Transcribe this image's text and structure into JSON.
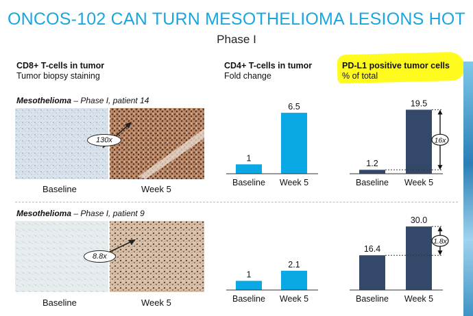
{
  "header": {
    "title": "ONCOS-102 CAN TURN MESOTHELIOMA LESIONS HOT",
    "subtitle": "Phase I"
  },
  "columns": {
    "cd8": {
      "title": "CD8+ T-cells in tumor",
      "subtitle": "Tumor biopsy staining"
    },
    "cd4": {
      "title": "CD4+ T-cells in tumor",
      "subtitle": "Fold change"
    },
    "pdl1": {
      "title": "PD-L1 positive tumor cells",
      "subtitle": "% of total",
      "highlight_color": "#fffb1f"
    }
  },
  "panels": [
    {
      "label_bold": "Mesothelioma",
      "label_rest": " – Phase I, patient 14",
      "fold_callout": "130x",
      "image_labels": [
        "Baseline",
        "Week 5"
      ]
    },
    {
      "label_bold": "Mesothelioma",
      "label_rest": " – Phase I, patient 9",
      "fold_callout": "8.8x",
      "image_labels": [
        "Baseline",
        "Week 5"
      ]
    }
  ],
  "colors": {
    "title": "#1aa6df",
    "cd4_bar": "#0aa9e6",
    "pdl1_bar": "#34496a",
    "stain_baseline": "#c9d6e0",
    "stain_week5": "#8a5a3a"
  },
  "chart_data": [
    {
      "type": "bar",
      "panel": "patient 14",
      "categories": [
        "Baseline",
        "Week 5"
      ],
      "values": [
        1,
        6.5
      ],
      "value_labels": [
        "1",
        "6.5"
      ],
      "ylim": [
        0,
        7
      ]
    },
    {
      "type": "bar",
      "panel": "patient 14",
      "categories": [
        "Baseline",
        "Week 5"
      ],
      "values": [
        1.2,
        19.5
      ],
      "value_labels": [
        "1.2",
        "19.5"
      ],
      "ylim": [
        0,
        20
      ],
      "annotation": "16x"
    },
    {
      "type": "bar",
      "panel": "patient 9",
      "categories": [
        "Baseline",
        "Week 5"
      ],
      "values": [
        1,
        2.1
      ],
      "value_labels": [
        "1",
        "2.1"
      ],
      "ylim": [
        0,
        7
      ]
    },
    {
      "type": "bar",
      "panel": "patient 9",
      "categories": [
        "Baseline",
        "Week 5"
      ],
      "values": [
        16.4,
        30.0
      ],
      "value_labels": [
        "16.4",
        "30.0"
      ],
      "ylim": [
        0,
        31
      ],
      "annotation": "1.8x"
    }
  ]
}
